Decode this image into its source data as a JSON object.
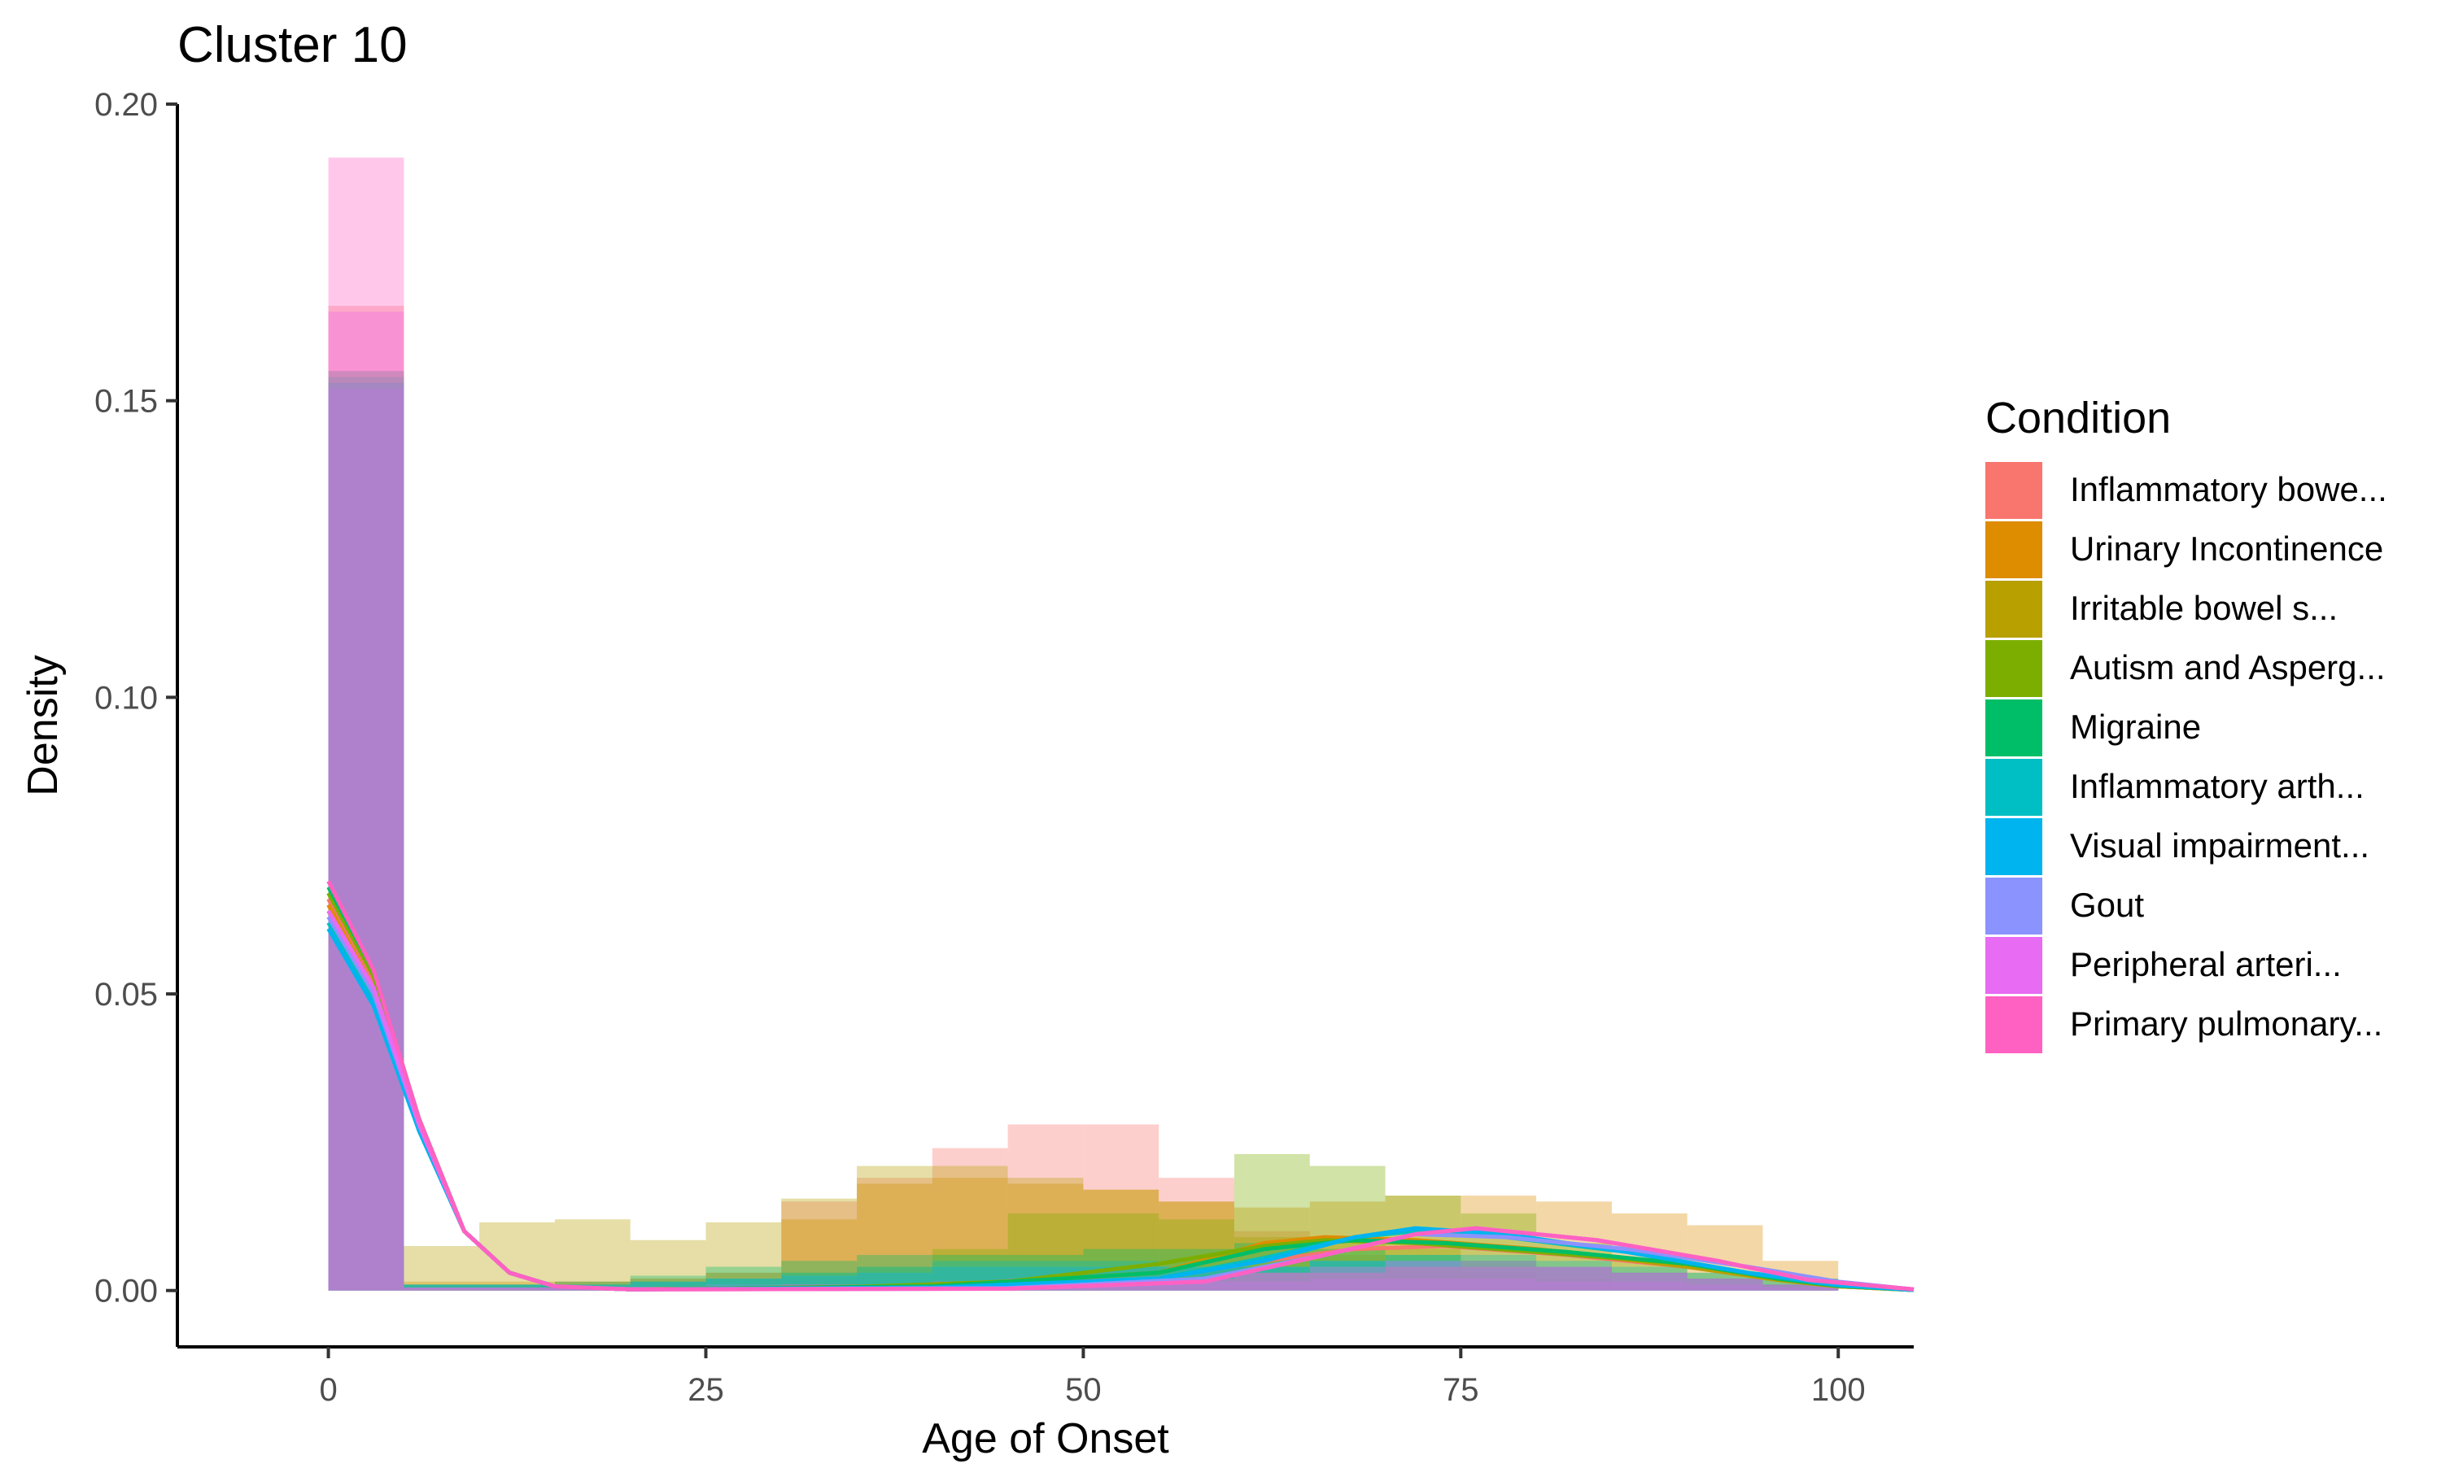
{
  "chart_data": {
    "type": "histogram",
    "title": "Cluster 10",
    "xlabel": "Age of Onset",
    "ylabel": "Density",
    "xlim": [
      -10,
      105
    ],
    "ylim": [
      -0.0095,
      0.2
    ],
    "x_ticks": [
      0,
      25,
      50,
      75,
      100
    ],
    "x_tick_labels": [
      "0",
      "25",
      "50",
      "75",
      "100"
    ],
    "y_ticks": [
      0,
      0.05,
      0.1,
      0.15,
      0.2
    ],
    "y_tick_labels": [
      "0.00",
      "0.05",
      "0.10",
      "0.15",
      "0.20"
    ],
    "bins": [
      0,
      5,
      10,
      15,
      20,
      25,
      30,
      35,
      40,
      45,
      50,
      55,
      60,
      65,
      70,
      75,
      80,
      85,
      90,
      95,
      100
    ],
    "grid": false,
    "legend_title": "Condition",
    "legend_position": "right",
    "series": [
      {
        "name": "Inflammatory bowe...",
        "color": "#F8766D",
        "hist": [
          0.166,
          0.001,
          0.001,
          0.0015,
          0.002,
          0.003,
          0.015,
          0.019,
          0.024,
          0.028,
          0.028,
          0.019,
          0.01,
          0.006,
          0.004,
          0.003,
          0.002,
          0.0015,
          0.001,
          0.001
        ],
        "density": [
          [
            0,
            0.066
          ],
          [
            3,
            0.052
          ],
          [
            6,
            0.028
          ],
          [
            9,
            0.01
          ],
          [
            12,
            0.003
          ],
          [
            15,
            0.0007
          ],
          [
            20,
            0.0002
          ],
          [
            40,
            0.0005
          ],
          [
            55,
            0.002
          ],
          [
            62,
            0.005
          ],
          [
            68,
            0.007
          ],
          [
            74,
            0.0075
          ],
          [
            82,
            0.006
          ],
          [
            90,
            0.004
          ],
          [
            96,
            0.0018
          ],
          [
            100,
            0.0007
          ],
          [
            105,
            0.0001
          ]
        ]
      },
      {
        "name": "Urinary Incontinence",
        "color": "#DE8C00",
        "hist": [
          0.155,
          0.0015,
          0.0015,
          0.0015,
          0.002,
          0.003,
          0.012,
          0.018,
          0.019,
          0.018,
          0.017,
          0.015,
          0.014,
          0.015,
          0.016,
          0.016,
          0.015,
          0.013,
          0.011,
          0.005
        ],
        "density": [
          [
            0,
            0.065
          ],
          [
            3,
            0.051
          ],
          [
            6,
            0.028
          ],
          [
            9,
            0.01
          ],
          [
            12,
            0.003
          ],
          [
            15,
            0.0007
          ],
          [
            20,
            0.0002
          ],
          [
            40,
            0.0006
          ],
          [
            55,
            0.003
          ],
          [
            62,
            0.008
          ],
          [
            66,
            0.009
          ],
          [
            72,
            0.0085
          ],
          [
            80,
            0.007
          ],
          [
            90,
            0.004
          ],
          [
            96,
            0.0018
          ],
          [
            100,
            0.0007
          ],
          [
            105,
            0.0001
          ]
        ]
      },
      {
        "name": "Irritable bowel s...",
        "color": "#B7A000",
        "hist": [
          0.152,
          0.0075,
          0.0115,
          0.012,
          0.0085,
          0.0115,
          0.0155,
          0.021,
          0.021,
          0.019,
          0.017,
          0.015,
          0.009,
          0.008,
          0.007,
          0.005,
          0.004,
          0.003,
          0.002,
          0.001
        ],
        "density": [
          [
            0,
            0.064
          ],
          [
            3,
            0.05
          ],
          [
            6,
            0.027
          ],
          [
            9,
            0.01
          ],
          [
            12,
            0.003
          ],
          [
            15,
            0.0007
          ],
          [
            20,
            0.0002
          ],
          [
            40,
            0.0008
          ],
          [
            55,
            0.003
          ],
          [
            62,
            0.0075
          ],
          [
            68,
            0.0085
          ],
          [
            74,
            0.008
          ],
          [
            82,
            0.0065
          ],
          [
            90,
            0.004
          ],
          [
            96,
            0.0018
          ],
          [
            100,
            0.0007
          ],
          [
            105,
            0.0001
          ]
        ]
      },
      {
        "name": "Autism and Asperg...",
        "color": "#7CAE00",
        "hist": [
          0.153,
          0.001,
          0.001,
          0.001,
          0.0015,
          0.002,
          0.003,
          0.004,
          0.007,
          0.013,
          0.013,
          0.012,
          0.023,
          0.021,
          0.016,
          0.013,
          0.008,
          0.005,
          0.003,
          0.002
        ],
        "density": [
          [
            0,
            0.067
          ],
          [
            3,
            0.053
          ],
          [
            6,
            0.029
          ],
          [
            9,
            0.01
          ],
          [
            12,
            0.003
          ],
          [
            15,
            0.0007
          ],
          [
            20,
            0.0002
          ],
          [
            35,
            0.0006
          ],
          [
            45,
            0.0015
          ],
          [
            55,
            0.0045
          ],
          [
            62,
            0.0075
          ],
          [
            66,
            0.0085
          ],
          [
            72,
            0.008
          ],
          [
            80,
            0.0065
          ],
          [
            90,
            0.0045
          ],
          [
            96,
            0.002
          ],
          [
            100,
            0.0008
          ],
          [
            105,
            0.0001
          ]
        ]
      },
      {
        "name": "Migraine",
        "color": "#00BE67",
        "hist": [
          0.154,
          0.001,
          0.001,
          0.0015,
          0.0025,
          0.004,
          0.005,
          0.006,
          0.006,
          0.006,
          0.007,
          0.007,
          0.008,
          0.007,
          0.006,
          0.005,
          0.004,
          0.003,
          0.002,
          0.001
        ],
        "density": [
          [
            0,
            0.068
          ],
          [
            3,
            0.054
          ],
          [
            6,
            0.029
          ],
          [
            9,
            0.01
          ],
          [
            12,
            0.003
          ],
          [
            15,
            0.0007
          ],
          [
            20,
            0.0002
          ],
          [
            40,
            0.0007
          ],
          [
            55,
            0.003
          ],
          [
            62,
            0.007
          ],
          [
            68,
            0.0085
          ],
          [
            74,
            0.008
          ],
          [
            82,
            0.0065
          ],
          [
            90,
            0.0045
          ],
          [
            96,
            0.002
          ],
          [
            100,
            0.0008
          ],
          [
            105,
            0.0001
          ]
        ]
      },
      {
        "name": "Inflammatory arth...",
        "color": "#00BFC4",
        "hist": [
          0.155,
          0.001,
          0.001,
          0.001,
          0.0015,
          0.002,
          0.003,
          0.004,
          0.005,
          0.005,
          0.005,
          0.004,
          0.004,
          0.005,
          0.006,
          0.006,
          0.005,
          0.004,
          0.003,
          0.002
        ],
        "density": [
          [
            0,
            0.062
          ],
          [
            3,
            0.049
          ],
          [
            6,
            0.027
          ],
          [
            9,
            0.01
          ],
          [
            12,
            0.003
          ],
          [
            15,
            0.0007
          ],
          [
            20,
            0.0002
          ],
          [
            40,
            0.0005
          ],
          [
            55,
            0.002
          ],
          [
            62,
            0.0055
          ],
          [
            68,
            0.009
          ],
          [
            72,
            0.01
          ],
          [
            78,
            0.009
          ],
          [
            86,
            0.0065
          ],
          [
            94,
            0.003
          ],
          [
            100,
            0.0009
          ],
          [
            105,
            0.0001
          ]
        ]
      },
      {
        "name": "Visual impairment...",
        "color": "#00B4F0",
        "hist": [
          0.153,
          0.001,
          0.001,
          0.001,
          0.0015,
          0.002,
          0.0025,
          0.003,
          0.004,
          0.004,
          0.004,
          0.004,
          0.004,
          0.005,
          0.005,
          0.004,
          0.004,
          0.003,
          0.002,
          0.001
        ],
        "density": [
          [
            0,
            0.061
          ],
          [
            3,
            0.048
          ],
          [
            6,
            0.027
          ],
          [
            9,
            0.01
          ],
          [
            12,
            0.003
          ],
          [
            15,
            0.0007
          ],
          [
            20,
            0.0002
          ],
          [
            40,
            0.0005
          ],
          [
            55,
            0.002
          ],
          [
            62,
            0.005
          ],
          [
            68,
            0.009
          ],
          [
            72,
            0.0105
          ],
          [
            78,
            0.0095
          ],
          [
            86,
            0.0065
          ],
          [
            94,
            0.003
          ],
          [
            100,
            0.0009
          ],
          [
            105,
            0.0001
          ]
        ]
      },
      {
        "name": "Gout",
        "color": "#8B93FF",
        "hist": [
          0.152,
          0.0005,
          0.0005,
          0.0005,
          0.0005,
          0.001,
          0.001,
          0.001,
          0.0015,
          0.0015,
          0.0015,
          0.0015,
          0.0015,
          0.002,
          0.002,
          0.002,
          0.0015,
          0.0015,
          0.001,
          0.0005
        ],
        "density": [
          [
            0,
            0.063
          ],
          [
            3,
            0.05
          ],
          [
            6,
            0.028
          ],
          [
            9,
            0.01
          ],
          [
            12,
            0.003
          ],
          [
            15,
            0.0007
          ],
          [
            20,
            0.0002
          ],
          [
            45,
            0.0004
          ],
          [
            58,
            0.002
          ],
          [
            66,
            0.006
          ],
          [
            72,
            0.0095
          ],
          [
            78,
            0.009
          ],
          [
            86,
            0.007
          ],
          [
            94,
            0.004
          ],
          [
            100,
            0.0015
          ],
          [
            105,
            0.0002
          ]
        ]
      },
      {
        "name": "Peripheral arteri...",
        "color": "#E76BF3",
        "hist": [
          0.165,
          0.0005,
          0.0005,
          0.0005,
          0.0005,
          0.0005,
          0.001,
          0.001,
          0.0015,
          0.002,
          0.002,
          0.002,
          0.003,
          0.004,
          0.005,
          0.005,
          0.004,
          0.003,
          0.002,
          0.001
        ],
        "density": [
          [
            0,
            0.064
          ],
          [
            3,
            0.051
          ],
          [
            6,
            0.028
          ],
          [
            9,
            0.01
          ],
          [
            12,
            0.003
          ],
          [
            15,
            0.0007
          ],
          [
            20,
            0.0002
          ],
          [
            45,
            0.0003
          ],
          [
            58,
            0.0015
          ],
          [
            66,
            0.006
          ],
          [
            72,
            0.0095
          ],
          [
            76,
            0.0105
          ],
          [
            84,
            0.0085
          ],
          [
            92,
            0.005
          ],
          [
            98,
            0.0018
          ],
          [
            105,
            0.0002
          ]
        ]
      },
      {
        "name": "Primary pulmonary...",
        "color": "#FF61C3",
        "hist": [
          0.191,
          0.0005,
          0.0005,
          0.0005,
          0.0005,
          0.0005,
          0.001,
          0.001,
          0.0015,
          0.0015,
          0.0015,
          0.002,
          0.003,
          0.003,
          0.004,
          0.004,
          0.004,
          0.003,
          0.002,
          0.001
        ],
        "density": [
          [
            0,
            0.069
          ],
          [
            3,
            0.054
          ],
          [
            6,
            0.029
          ],
          [
            9,
            0.01
          ],
          [
            12,
            0.003
          ],
          [
            15,
            0.0007
          ],
          [
            20,
            0.0002
          ],
          [
            45,
            0.0003
          ],
          [
            58,
            0.0015
          ],
          [
            66,
            0.006
          ],
          [
            72,
            0.0095
          ],
          [
            76,
            0.0105
          ],
          [
            84,
            0.0085
          ],
          [
            92,
            0.005
          ],
          [
            98,
            0.0018
          ],
          [
            105,
            0.0002
          ]
        ]
      }
    ]
  }
}
